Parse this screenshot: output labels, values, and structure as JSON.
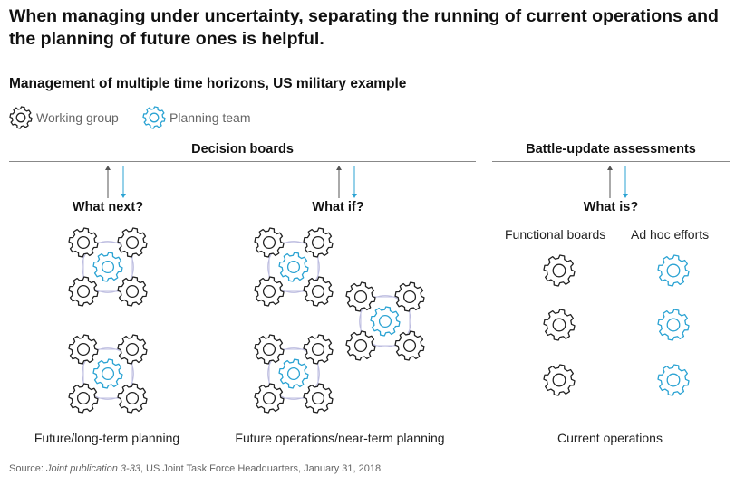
{
  "title": "When managing under uncertainty, separating the running of current operations and the planning of future ones is helpful.",
  "subtitle": "Management of multiple time horizons, US military example",
  "legend": [
    {
      "label": "Working group",
      "icon": "gear-icon",
      "color": "#222222"
    },
    {
      "label": "Planning team",
      "icon": "gear-icon",
      "color": "#2ba3d3"
    }
  ],
  "sections": {
    "decision_boards": "Decision boards",
    "battle_update": "Battle-update assessments"
  },
  "questions": {
    "what_next": "What next?",
    "what_if": "What if?",
    "what_is": "What is?"
  },
  "sub_labels": {
    "functional_boards": "Functional boards",
    "ad_hoc": "Ad hoc efforts"
  },
  "columns": {
    "future_long": "Future/long-term planning",
    "future_ops": "Future operations/near-term planning",
    "current_ops": "Current operations"
  },
  "source": {
    "prefix": "Source: ",
    "publication": "Joint publication 3-33",
    "rest": ", US Joint Task Force Headquarters, January 31, 2018"
  },
  "colors": {
    "working": "#222222",
    "planning": "#2ba3d3",
    "arrow_up": "#555555",
    "arrow_down": "#2ba3d3",
    "cluster_line": "#bdbde0"
  }
}
